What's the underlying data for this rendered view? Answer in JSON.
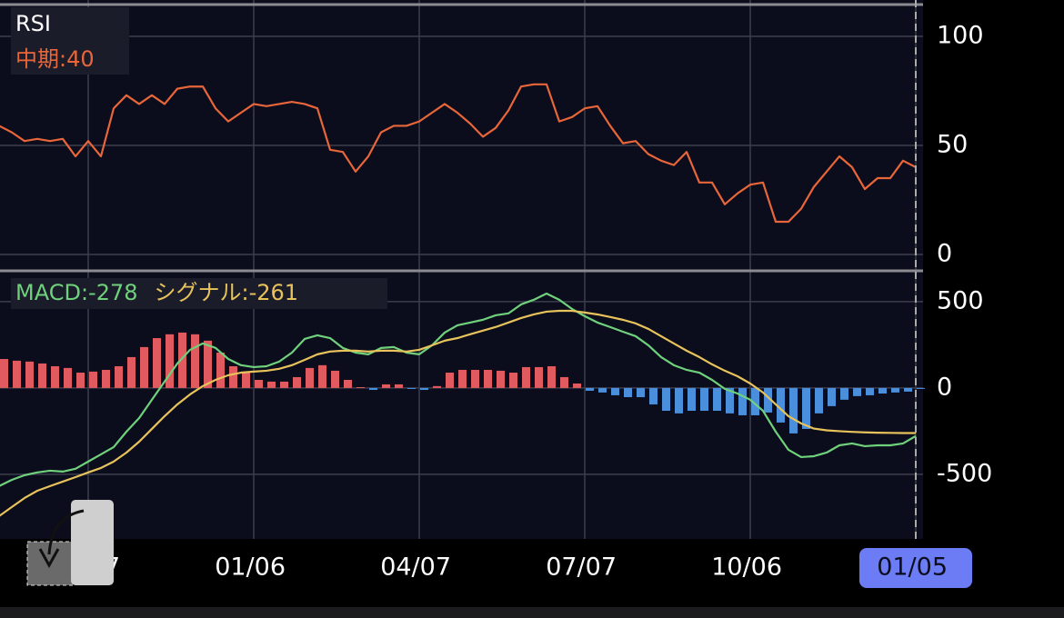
{
  "chart_data": [
    {
      "type": "line",
      "title": "RSI",
      "series": [
        {
          "name": "中期:40",
          "color": "#e8663a",
          "values": [
            59,
            56,
            52,
            53,
            52,
            53,
            45,
            52,
            45,
            67,
            73,
            69,
            73,
            69,
            76,
            77,
            77,
            67,
            61,
            65,
            69,
            68,
            69,
            70,
            69,
            67,
            48,
            47,
            38,
            45,
            56,
            59,
            59,
            61,
            65,
            69,
            65,
            60,
            54,
            58,
            66,
            77,
            78,
            78,
            61,
            63,
            67,
            68,
            59,
            51,
            52,
            46,
            43,
            41,
            47,
            33,
            33,
            23,
            28,
            32,
            33,
            15,
            15,
            21,
            31,
            38,
            45,
            40,
            30,
            35,
            35,
            43,
            40
          ]
        }
      ],
      "ylim": [
        -7.5,
        114.6
      ],
      "yticks": [
        0,
        50,
        100
      ],
      "grid": true
    },
    {
      "type": "line",
      "categories": [
        null,
        null,
        null,
        null,
        null,
        null,
        null,
        "7",
        null,
        null,
        null,
        null,
        null,
        null,
        null,
        null,
        null,
        null,
        null,
        null,
        "01/06",
        null,
        null,
        null,
        null,
        null,
        null,
        null,
        null,
        null,
        null,
        null,
        null,
        "04/07",
        null,
        null,
        null,
        null,
        null,
        null,
        null,
        null,
        null,
        null,
        null,
        null,
        "07/07",
        null,
        null,
        null,
        null,
        null,
        null,
        null,
        null,
        null,
        null,
        null,
        null,
        "10/06",
        null,
        null,
        null,
        null,
        null,
        null,
        null,
        null,
        null,
        null,
        null,
        null,
        "01/05"
      ],
      "series": [
        {
          "type": "bar",
          "color": "#e05a5f",
          "negative_color": "#4a8fdc",
          "values": [
            168,
            158,
            153,
            142,
            126,
            116,
            89,
            95,
            105,
            126,
            179,
            237,
            289,
            311,
            321,
            311,
            274,
            205,
            126,
            89,
            47,
            37,
            37,
            63,
            116,
            132,
            100,
            47,
            5,
            -11,
            21,
            21,
            -5,
            -11,
            11,
            89,
            105,
            105,
            105,
            100,
            89,
            121,
            121,
            126,
            63,
            26,
            -16,
            -26,
            -42,
            -53,
            -53,
            -95,
            -132,
            -147,
            -132,
            -132,
            -132,
            -147,
            -158,
            -158,
            -142,
            -200,
            -263,
            -237,
            -147,
            -105,
            -68,
            -47,
            -42,
            -32,
            -26,
            -21,
            -5
          ]
        },
        {
          "name": "MACD:-278",
          "color": "#6fd17c",
          "values": [
            -568,
            -532,
            -505,
            -489,
            -479,
            -484,
            -468,
            -426,
            -384,
            -342,
            -253,
            -174,
            -68,
            37,
            142,
            221,
            258,
            232,
            168,
            132,
            121,
            126,
            153,
            205,
            284,
            305,
            289,
            232,
            205,
            195,
            232,
            237,
            205,
            195,
            247,
            321,
            363,
            379,
            395,
            421,
            432,
            484,
            511,
            547,
            511,
            458,
            416,
            379,
            353,
            326,
            300,
            247,
            179,
            132,
            105,
            89,
            47,
            -5,
            -32,
            -68,
            -132,
            -253,
            -358,
            -400,
            -395,
            -374,
            -332,
            -321,
            -337,
            -332,
            -332,
            -321,
            -278
          ]
        },
        {
          "name": "シグナル:-261",
          "color": "#e8c35c",
          "values": [
            -742,
            -689,
            -637,
            -595,
            -568,
            -542,
            -516,
            -489,
            -463,
            -426,
            -374,
            -311,
            -237,
            -163,
            -95,
            -37,
            11,
            47,
            74,
            89,
            95,
            100,
            111,
            132,
            163,
            195,
            211,
            216,
            216,
            211,
            216,
            216,
            211,
            221,
            247,
            274,
            289,
            311,
            332,
            353,
            379,
            405,
            426,
            442,
            447,
            447,
            437,
            426,
            411,
            395,
            374,
            342,
            300,
            258,
            216,
            179,
            137,
            100,
            68,
            26,
            -26,
            -95,
            -163,
            -205,
            -235,
            -245,
            -250,
            -254,
            -257,
            -259,
            -260,
            -261,
            -261
          ]
        }
      ],
      "ylim": [
        -874,
        668
      ],
      "yticks": [
        -500,
        0,
        500
      ],
      "grid": true
    }
  ]
}
